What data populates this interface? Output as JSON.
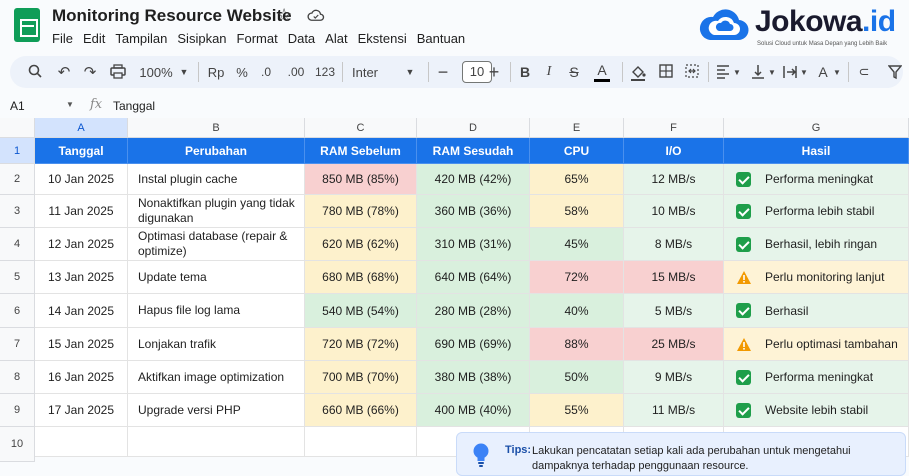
{
  "app": {
    "title": "Monitoring Resource Website",
    "menu": [
      "File",
      "Edit",
      "Tampilan",
      "Sisipkan",
      "Format",
      "Data",
      "Alat",
      "Ekstensi",
      "Bantuan"
    ]
  },
  "brand": {
    "name_main": "Jokowa",
    "name_suffix": ".id",
    "tagline": "Solusi Cloud untuk Masa Depan yang Lebih Baik",
    "color": "#1a73e8"
  },
  "toolbar": {
    "zoom": "100%",
    "currency": "Rp",
    "percent": "%",
    "dec_decrease": ".0",
    "dec_increase": ".00",
    "number_format": "123",
    "font": "Inter",
    "font_size": "10",
    "bold": "B",
    "italic": "I",
    "strike": "S",
    "text_color": "A"
  },
  "formula_bar": {
    "cell_ref": "A1",
    "fx": "fx",
    "value": "Tanggal"
  },
  "grid": {
    "columns": [
      "A",
      "B",
      "C",
      "D",
      "E",
      "F",
      "G"
    ],
    "rows": [
      "1",
      "2",
      "3",
      "4",
      "5",
      "6",
      "7",
      "8",
      "9",
      "10"
    ],
    "headers": [
      "Tanggal",
      "Perubahan",
      "RAM Sebelum",
      "RAM Sesudah",
      "CPU",
      "I/O",
      "Hasil"
    ],
    "data": [
      {
        "tanggal": "10 Jan 2025",
        "perubahan": "Instal plugin cache",
        "ram_sebelum": "850 MB (85%)",
        "ram_sesudah": "420 MB (42%)",
        "cpu": "65%",
        "io": "12 MB/s",
        "hasil": "Performa meningkat",
        "status": "ok"
      },
      {
        "tanggal": "11 Jan 2025",
        "perubahan": "Nonaktifkan plugin yang tidak digunakan",
        "ram_sebelum": "780 MB (78%)",
        "ram_sesudah": "360 MB (36%)",
        "cpu": "58%",
        "io": "10 MB/s",
        "hasil": "Performa lebih stabil",
        "status": "ok"
      },
      {
        "tanggal": "12 Jan 2025",
        "perubahan": "Optimasi database (repair & optimize)",
        "ram_sebelum": "620 MB (62%)",
        "ram_sesudah": "310 MB (31%)",
        "cpu": "45%",
        "io": "8 MB/s",
        "hasil": "Berhasil, lebih ringan",
        "status": "ok"
      },
      {
        "tanggal": "13 Jan 2025",
        "perubahan": "Update tema",
        "ram_sebelum": "680 MB (68%)",
        "ram_sesudah": "640 MB (64%)",
        "cpu": "72%",
        "io": "15 MB/s",
        "hasil": "Perlu monitoring lanjut",
        "status": "warn"
      },
      {
        "tanggal": "14 Jan 2025",
        "perubahan": "Hapus file log lama",
        "ram_sebelum": "540 MB (54%)",
        "ram_sesudah": "280 MB (28%)",
        "cpu": "40%",
        "io": "5 MB/s",
        "hasil": "Berhasil",
        "status": "ok"
      },
      {
        "tanggal": "15 Jan 2025",
        "perubahan": "Lonjakan trafik",
        "ram_sebelum": "720 MB (72%)",
        "ram_sesudah": "690 MB (69%)",
        "cpu": "88%",
        "io": "25 MB/s",
        "hasil": "Perlu optimasi tambahan",
        "status": "warn"
      },
      {
        "tanggal": "16 Jan 2025",
        "perubahan": "Aktifkan image optimization",
        "ram_sebelum": "700 MB (70%)",
        "ram_sesudah": "380 MB (38%)",
        "cpu": "50%",
        "io": "9 MB/s",
        "hasil": "Performa meningkat",
        "status": "ok"
      },
      {
        "tanggal": "17 Jan 2025",
        "perubahan": "Upgrade versi PHP",
        "ram_sebelum": "660 MB (66%)",
        "ram_sesudah": "400 MB (40%)",
        "cpu": "55%",
        "io": "11 MB/s",
        "hasil": "Website lebih stabil",
        "status": "ok"
      }
    ],
    "colors": {
      "header_bg": "#1a73e8",
      "red": "#f8d0d0",
      "green": "#d9f0dd",
      "yellow": "#fdf1cc",
      "check": "#1e9e4a",
      "warn": "#f29900"
    }
  },
  "tips": {
    "label": "Tips:",
    "text": "Lakukan pencatatan setiap kali ada perubahan untuk mengetahui dampaknya terhadap penggunaan resource."
  }
}
